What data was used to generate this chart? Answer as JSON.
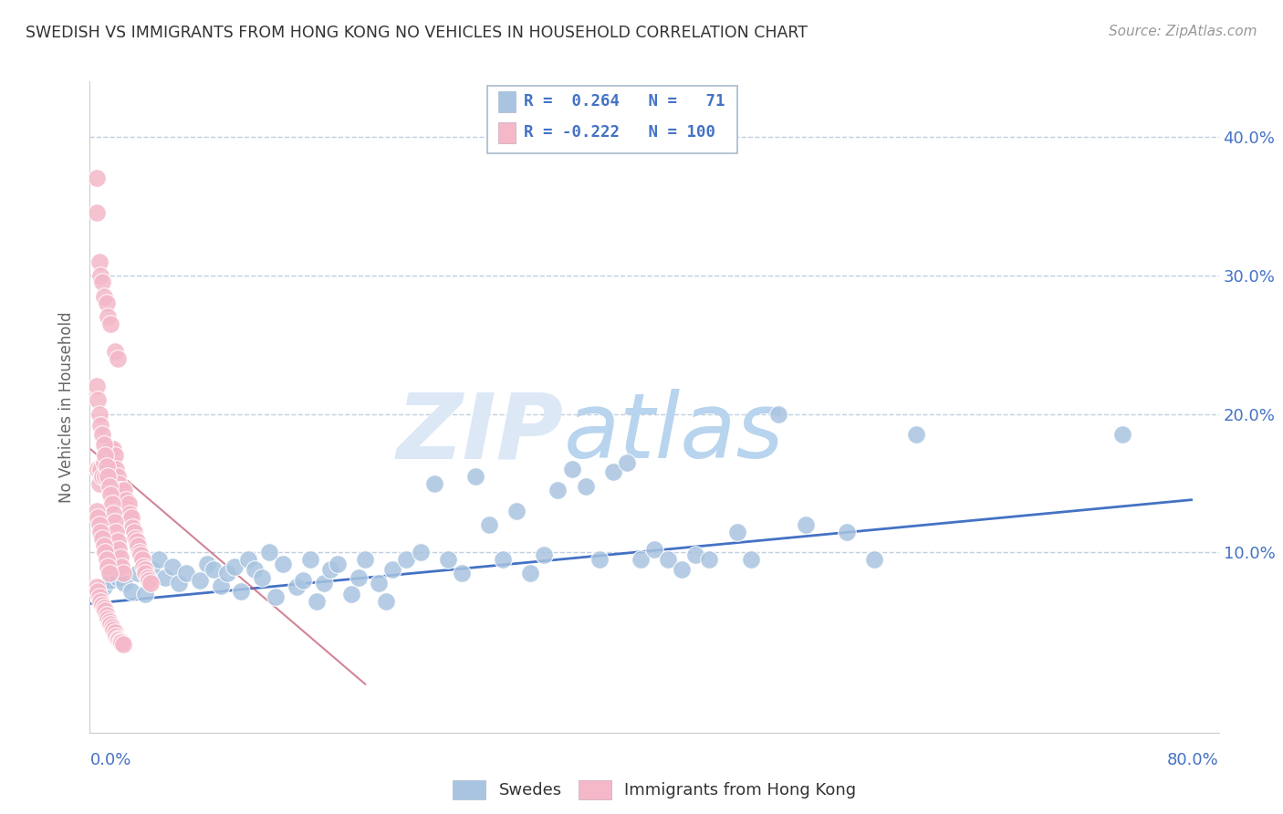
{
  "title": "SWEDISH VS IMMIGRANTS FROM HONG KONG NO VEHICLES IN HOUSEHOLD CORRELATION CHART",
  "source": "Source: ZipAtlas.com",
  "ylabel": "No Vehicles in Household",
  "ytick_vals": [
    0.0,
    0.1,
    0.2,
    0.3,
    0.4
  ],
  "ytick_labels": [
    "",
    "10.0%",
    "20.0%",
    "30.0%",
    "40.0%"
  ],
  "xlim": [
    0.0,
    0.82
  ],
  "ylim": [
    -0.03,
    0.44
  ],
  "color_blue": "#a8c4e0",
  "color_pink": "#f4b8c8",
  "color_blue_dark": "#4472c4",
  "color_pink_dark": "#c0506a",
  "watermark_zip": "ZIP",
  "watermark_atlas": "atlas",
  "watermark_color": "#dce8f5",
  "background_color": "#ffffff",
  "grid_color": "#c0d0e0",
  "blue_trend_x": [
    0.0,
    0.8
  ],
  "blue_trend_y": [
    0.063,
    0.138
  ],
  "pink_trend_x": [
    0.0,
    0.2
  ],
  "pink_trend_y": [
    0.175,
    0.005
  ],
  "swedes_x": [
    0.01,
    0.015,
    0.02,
    0.025,
    0.03,
    0.035,
    0.04,
    0.045,
    0.05,
    0.055,
    0.06,
    0.065,
    0.07,
    0.08,
    0.085,
    0.09,
    0.095,
    0.1,
    0.105,
    0.11,
    0.115,
    0.12,
    0.125,
    0.13,
    0.135,
    0.14,
    0.15,
    0.155,
    0.16,
    0.165,
    0.17,
    0.175,
    0.18,
    0.19,
    0.195,
    0.2,
    0.21,
    0.215,
    0.22,
    0.23,
    0.24,
    0.25,
    0.26,
    0.27,
    0.28,
    0.29,
    0.3,
    0.31,
    0.32,
    0.33,
    0.34,
    0.35,
    0.36,
    0.37,
    0.38,
    0.39,
    0.4,
    0.41,
    0.42,
    0.43,
    0.44,
    0.45,
    0.47,
    0.48,
    0.5,
    0.52,
    0.55,
    0.57,
    0.6,
    0.75
  ],
  "swedes_y": [
    0.075,
    0.08,
    0.082,
    0.078,
    0.072,
    0.085,
    0.07,
    0.088,
    0.095,
    0.082,
    0.09,
    0.078,
    0.085,
    0.08,
    0.092,
    0.088,
    0.076,
    0.085,
    0.09,
    0.072,
    0.095,
    0.088,
    0.082,
    0.1,
    0.068,
    0.092,
    0.075,
    0.08,
    0.095,
    0.065,
    0.078,
    0.088,
    0.092,
    0.07,
    0.082,
    0.095,
    0.078,
    0.065,
    0.088,
    0.095,
    0.1,
    0.15,
    0.095,
    0.085,
    0.155,
    0.12,
    0.095,
    0.13,
    0.085,
    0.098,
    0.145,
    0.16,
    0.148,
    0.095,
    0.158,
    0.165,
    0.095,
    0.102,
    0.095,
    0.088,
    0.098,
    0.095,
    0.115,
    0.095,
    0.2,
    0.12,
    0.115,
    0.095,
    0.185,
    0.185
  ],
  "hk_x": [
    0.005,
    0.005,
    0.006,
    0.007,
    0.007,
    0.008,
    0.008,
    0.009,
    0.009,
    0.01,
    0.01,
    0.011,
    0.012,
    0.012,
    0.013,
    0.013,
    0.014,
    0.015,
    0.015,
    0.016,
    0.017,
    0.018,
    0.018,
    0.019,
    0.02,
    0.02,
    0.021,
    0.022,
    0.023,
    0.024,
    0.025,
    0.026,
    0.027,
    0.028,
    0.029,
    0.03,
    0.031,
    0.032,
    0.033,
    0.034,
    0.035,
    0.036,
    0.037,
    0.038,
    0.039,
    0.04,
    0.04,
    0.042,
    0.043,
    0.044,
    0.005,
    0.006,
    0.007,
    0.008,
    0.009,
    0.01,
    0.011,
    0.012,
    0.013,
    0.014,
    0.015,
    0.016,
    0.017,
    0.018,
    0.019,
    0.02,
    0.021,
    0.022,
    0.023,
    0.024,
    0.005,
    0.006,
    0.007,
    0.008,
    0.009,
    0.01,
    0.011,
    0.012,
    0.013,
    0.014,
    0.015,
    0.016,
    0.017,
    0.018,
    0.019,
    0.02,
    0.021,
    0.022,
    0.023,
    0.024,
    0.005,
    0.006,
    0.007,
    0.008,
    0.009,
    0.01,
    0.011,
    0.012,
    0.013,
    0.014
  ],
  "hk_y": [
    0.37,
    0.345,
    0.16,
    0.15,
    0.31,
    0.16,
    0.3,
    0.155,
    0.295,
    0.165,
    0.285,
    0.155,
    0.17,
    0.28,
    0.165,
    0.27,
    0.16,
    0.175,
    0.265,
    0.165,
    0.175,
    0.17,
    0.245,
    0.16,
    0.155,
    0.24,
    0.15,
    0.145,
    0.145,
    0.14,
    0.145,
    0.138,
    0.132,
    0.135,
    0.128,
    0.125,
    0.118,
    0.115,
    0.11,
    0.108,
    0.105,
    0.1,
    0.098,
    0.095,
    0.09,
    0.088,
    0.085,
    0.082,
    0.08,
    0.078,
    0.22,
    0.21,
    0.2,
    0.192,
    0.185,
    0.178,
    0.17,
    0.162,
    0.155,
    0.148,
    0.142,
    0.135,
    0.128,
    0.122,
    0.115,
    0.108,
    0.102,
    0.096,
    0.09,
    0.085,
    0.075,
    0.072,
    0.068,
    0.065,
    0.062,
    0.06,
    0.058,
    0.055,
    0.052,
    0.05,
    0.048,
    0.046,
    0.044,
    0.042,
    0.04,
    0.038,
    0.037,
    0.036,
    0.035,
    0.034,
    0.13,
    0.125,
    0.12,
    0.115,
    0.11,
    0.105,
    0.1,
    0.095,
    0.09,
    0.085
  ]
}
